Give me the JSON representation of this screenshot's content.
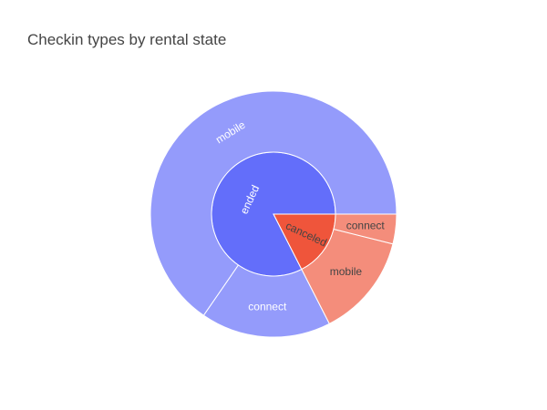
{
  "chart_data": {
    "type": "sunburst",
    "title": "Checkin types by rental state",
    "colors": {
      "ended": "#636efa",
      "canceled": "#ef553b",
      "ended_child": "#949bfb",
      "canceled_child": "#f48d7b",
      "stroke": "#ffffff",
      "text_light": "#ffffff",
      "text_dark": "#444444"
    },
    "nodes": [
      {
        "id": "ended",
        "label": "ended",
        "parent": "",
        "value": 82.5
      },
      {
        "id": "canceled",
        "label": "canceled",
        "parent": "",
        "value": 17.5
      },
      {
        "id": "ended/mobile",
        "label": "mobile",
        "parent": "ended",
        "value": 65.4
      },
      {
        "id": "ended/connect",
        "label": "connect",
        "parent": "ended",
        "value": 17.1
      },
      {
        "id": "canceled/mobile",
        "label": "mobile",
        "parent": "canceled",
        "value": 13.6
      },
      {
        "id": "canceled/connect",
        "label": "connect",
        "parent": "canceled",
        "value": 3.9
      }
    ]
  }
}
